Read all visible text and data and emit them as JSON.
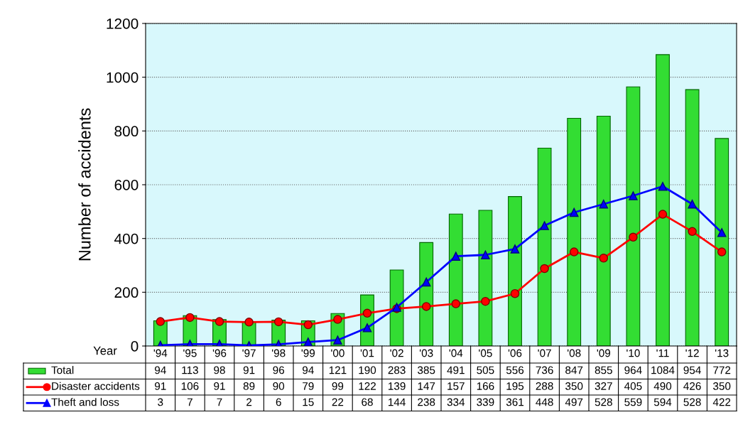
{
  "chart_data": {
    "type": "bar",
    "ylabel": "Number of accidents",
    "xlabel": "Year",
    "categories": [
      "'94",
      "'95",
      "'96",
      "'97",
      "'98",
      "'99",
      "'00",
      "'01",
      "'02",
      "'03",
      "'04",
      "'05",
      "'06",
      "'07",
      "'08",
      "'09",
      "'10",
      "'11",
      "'12",
      "'13"
    ],
    "series": [
      {
        "name": "Total",
        "color": "#33dd33",
        "values": [
          94,
          113,
          98,
          91,
          96,
          94,
          121,
          190,
          283,
          385,
          491,
          505,
          556,
          736,
          847,
          855,
          964,
          1084,
          954,
          772
        ]
      },
      {
        "name": "Disaster accidents",
        "type": "line",
        "color": "#ff0000",
        "marker": "circle",
        "values": [
          91,
          106,
          91,
          89,
          90,
          79,
          99,
          122,
          139,
          147,
          157,
          166,
          195,
          288,
          350,
          327,
          405,
          490,
          426,
          350
        ]
      },
      {
        "name": "Theft and loss",
        "type": "line",
        "color": "#0000ff",
        "marker": "triangle",
        "values": [
          3,
          7,
          7,
          2,
          6,
          15,
          22,
          68,
          144,
          238,
          334,
          339,
          361,
          448,
          497,
          528,
          559,
          594,
          528,
          422
        ]
      }
    ],
    "ylim": [
      0,
      1200
    ],
    "yticks": [
      0,
      200,
      400,
      600,
      800,
      1000,
      1200
    ],
    "grid": "y",
    "legend": "bottom",
    "data_labels": true
  }
}
